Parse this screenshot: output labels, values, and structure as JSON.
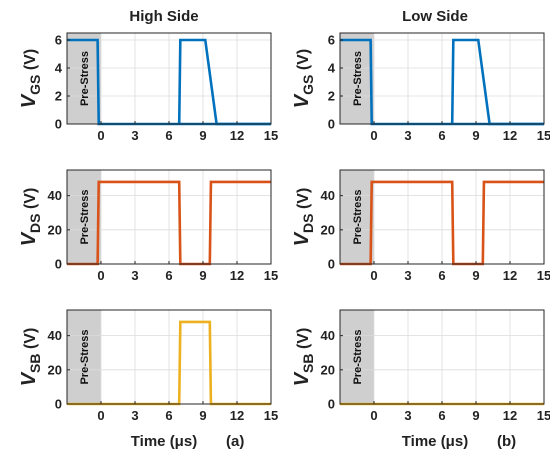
{
  "titles": {
    "left": "High Side",
    "right": "Low Side"
  },
  "pre_stress_label": "Pre-Stress",
  "x_axis": {
    "label": "Time (μs)",
    "ticks": [
      "0",
      "3",
      "6",
      "9",
      "12",
      "15"
    ]
  },
  "panel_ids": {
    "left": "(a)",
    "right": "(b)"
  },
  "y_labels": {
    "vgs": {
      "main": "V",
      "sub": "GS",
      "unit": " (V)"
    },
    "vds": {
      "main": "V",
      "sub": "DS",
      "unit": " (V)"
    },
    "vsb": {
      "main": "V",
      "sub": "SB",
      "unit": " (V)"
    }
  },
  "chart_data": [
    {
      "type": "line",
      "name_ref": "high-vgs",
      "column": "left",
      "row": 0,
      "ylabel": "V_GS (V)",
      "xlim": [
        -3,
        15
      ],
      "ylim": [
        0,
        6.5
      ],
      "yticks": [
        0,
        2,
        4,
        6
      ],
      "xticks": [
        0,
        3,
        6,
        9,
        12,
        15
      ],
      "pre_stress": [
        -3,
        0
      ],
      "color": "#0072bd",
      "x": [
        -3,
        -0.3,
        -0.2,
        15
      ],
      "y": [
        6,
        6,
        0,
        0
      ],
      "x2": [
        6.9,
        7.0,
        9.2,
        10.2,
        15
      ],
      "y2": [
        0,
        6,
        6,
        0,
        0
      ]
    },
    {
      "type": "line",
      "name_ref": "low-vgs",
      "column": "right",
      "row": 0,
      "ylabel": "V_GS (V)",
      "xlim": [
        -3,
        15
      ],
      "ylim": [
        0,
        6.5
      ],
      "yticks": [
        0,
        2,
        4,
        6
      ],
      "xticks": [
        0,
        3,
        6,
        9,
        12,
        15
      ],
      "pre_stress": [
        -3,
        0
      ],
      "color": "#0072bd",
      "x": [
        -3,
        -0.3,
        -0.2,
        15
      ],
      "y": [
        6,
        6,
        0,
        0
      ],
      "x2": [
        6.9,
        7.0,
        9.2,
        10.2,
        15
      ],
      "y2": [
        0,
        6,
        6,
        0,
        0
      ]
    },
    {
      "type": "line",
      "name_ref": "high-vds",
      "column": "left",
      "row": 1,
      "ylabel": "V_DS (V)",
      "xlim": [
        -3,
        15
      ],
      "ylim": [
        0,
        55
      ],
      "yticks": [
        0,
        20,
        40
      ],
      "xticks": [
        0,
        3,
        6,
        9,
        12,
        15
      ],
      "pre_stress": [
        -3,
        0
      ],
      "color": "#d95319",
      "x": [
        -3,
        -0.3,
        -0.2,
        6.9,
        7.0,
        9.6,
        9.7,
        15
      ],
      "y": [
        0,
        0,
        48,
        48,
        0,
        0,
        48,
        48
      ]
    },
    {
      "type": "line",
      "name_ref": "low-vds",
      "column": "right",
      "row": 1,
      "ylabel": "V_DS (V)",
      "xlim": [
        -3,
        15
      ],
      "ylim": [
        0,
        55
      ],
      "yticks": [
        0,
        20,
        40
      ],
      "xticks": [
        0,
        3,
        6,
        9,
        12,
        15
      ],
      "pre_stress": [
        -3,
        0
      ],
      "color": "#d95319",
      "x": [
        -3,
        -0.3,
        -0.2,
        6.9,
        7.0,
        9.6,
        9.7,
        15
      ],
      "y": [
        0,
        0,
        48,
        48,
        0,
        0,
        48,
        48
      ]
    },
    {
      "type": "line",
      "name_ref": "high-vsb",
      "column": "left",
      "row": 2,
      "ylabel": "V_SB (V)",
      "xlim": [
        -3,
        15
      ],
      "ylim": [
        0,
        55
      ],
      "yticks": [
        0,
        20,
        40
      ],
      "xticks": [
        0,
        3,
        6,
        9,
        12,
        15
      ],
      "pre_stress": [
        -3,
        0
      ],
      "color": "#edb120",
      "x": [
        -3,
        6.9,
        7.0,
        9.6,
        9.7,
        15
      ],
      "y": [
        0,
        0,
        48,
        48,
        0,
        0
      ]
    },
    {
      "type": "line",
      "name_ref": "low-vsb",
      "column": "right",
      "row": 2,
      "ylabel": "V_SB (V)",
      "xlim": [
        -3,
        15
      ],
      "ylim": [
        0,
        55
      ],
      "yticks": [
        0,
        20,
        40
      ],
      "xticks": [
        0,
        3,
        6,
        9,
        12,
        15
      ],
      "pre_stress": [
        -3,
        0
      ],
      "color": "#edb120",
      "x": [
        -3,
        15
      ],
      "y": [
        0,
        0
      ]
    }
  ]
}
